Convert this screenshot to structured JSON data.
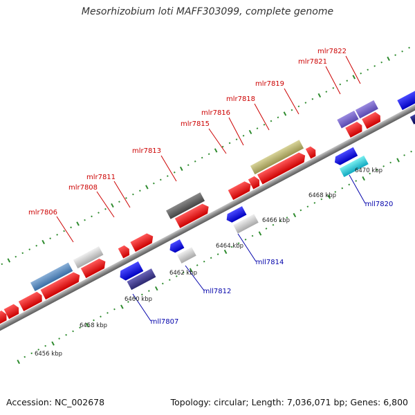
{
  "title": "Mesorhizobium loti MAFF303099, complete genome",
  "footer": {
    "accession": "Accession: NC_002678",
    "summary": "Topology: circular; Length: 7,036,071 bp; Genes: 6,800"
  },
  "colors": {
    "forward_label": "#cc0000",
    "reverse_label": "#0000aa",
    "backbone": "#8a8a8a",
    "tick": "#2e8b2e"
  },
  "forward_genes": [
    "mlr7806",
    "mlr7808",
    "mlr7811",
    "mlr7813",
    "mlr7815",
    "mlr7816",
    "mlr7818",
    "mlr7819",
    "mlr7821",
    "mlr7822"
  ],
  "reverse_genes": [
    "mll7807",
    "mll7812",
    "mll7814",
    "mll7820"
  ],
  "kbp_labels": [
    "6456 kbp",
    "6458 kbp",
    "6460 kbp",
    "6462 kbp",
    "6464 kbp",
    "6466 kbp",
    "6468 kbp",
    "6470 kbp"
  ]
}
